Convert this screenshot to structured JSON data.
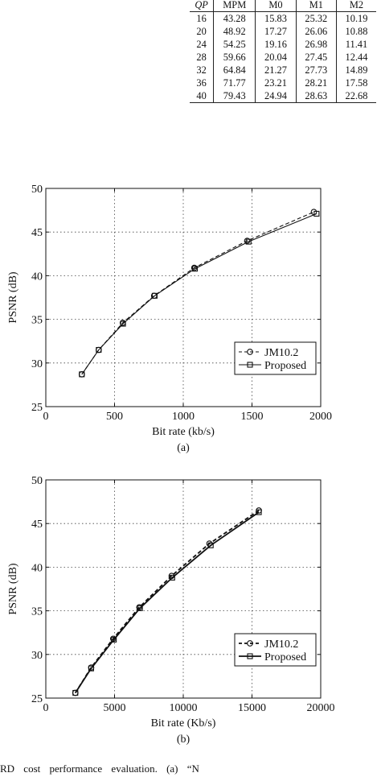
{
  "table": {
    "headers": [
      "QP",
      "MPM",
      "M0",
      "M1",
      "M2"
    ],
    "rows": [
      [
        "16",
        "43.28",
        "15.83",
        "25.32",
        "10.19"
      ],
      [
        "20",
        "48.92",
        "17.27",
        "26.06",
        "10.88"
      ],
      [
        "24",
        "54.25",
        "19.16",
        "26.98",
        "11.41"
      ],
      [
        "28",
        "59.66",
        "20.04",
        "27.45",
        "12.44"
      ],
      [
        "32",
        "64.84",
        "21.27",
        "27.73",
        "14.89"
      ],
      [
        "36",
        "71.77",
        "23.21",
        "28.21",
        "17.58"
      ],
      [
        "40",
        "79.43",
        "24.94",
        "28.63",
        "22.68"
      ]
    ]
  },
  "chart_data": [
    {
      "type": "line",
      "sublabel": "(a)",
      "xlabel": "Bit rate (kb/s)",
      "ylabel": "PSNR (dB)",
      "xlim": [
        0,
        2000
      ],
      "ylim": [
        25,
        50
      ],
      "xticks": [
        0,
        500,
        1000,
        1500,
        2000
      ],
      "yticks": [
        25,
        30,
        35,
        40,
        45,
        50
      ],
      "grid": true,
      "legend_position": "bottom-right",
      "series": [
        {
          "name": "JM10.2",
          "marker": "circle",
          "line_style": "dashed",
          "x": [
            262,
            385,
            560,
            788,
            1080,
            1465,
            1950
          ],
          "y": [
            28.7,
            31.5,
            34.6,
            37.7,
            40.9,
            44.0,
            47.3
          ]
        },
        {
          "name": "Proposed",
          "marker": "square",
          "line_style": "solid",
          "x": [
            262,
            385,
            562,
            792,
            1085,
            1475,
            1970
          ],
          "y": [
            28.7,
            31.5,
            34.5,
            37.7,
            40.8,
            43.9,
            47.1
          ]
        }
      ]
    },
    {
      "type": "line",
      "sublabel": "(b)",
      "xlabel": "Bit rate (Kb/s)",
      "ylabel": "PSNR (dB)",
      "xlim": [
        0,
        20000
      ],
      "ylim": [
        25,
        50
      ],
      "xticks": [
        0,
        5000,
        10000,
        15000,
        20000
      ],
      "yticks": [
        25,
        30,
        35,
        40,
        45,
        50
      ],
      "grid": true,
      "legend_position": "bottom-right",
      "series": [
        {
          "name": "JM10.2",
          "marker": "circle",
          "line_style": "dashed",
          "x": [
            2150,
            3300,
            4900,
            6800,
            9150,
            11900,
            15500
          ],
          "y": [
            25.6,
            28.5,
            31.8,
            35.4,
            39.0,
            42.7,
            46.5
          ]
        },
        {
          "name": "Proposed",
          "marker": "square",
          "line_style": "solid",
          "x": [
            2150,
            3300,
            4950,
            6850,
            9200,
            12000,
            15500
          ],
          "y": [
            25.6,
            28.4,
            31.7,
            35.3,
            38.8,
            42.5,
            46.3
          ]
        }
      ]
    }
  ],
  "caption": "RD cost performance evaluation. (a) “N"
}
